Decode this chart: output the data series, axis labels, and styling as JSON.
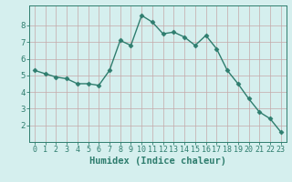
{
  "x": [
    0,
    1,
    2,
    3,
    4,
    5,
    6,
    7,
    8,
    9,
    10,
    11,
    12,
    13,
    14,
    15,
    16,
    17,
    18,
    19,
    20,
    21,
    22,
    23
  ],
  "y": [
    5.3,
    5.1,
    4.9,
    4.8,
    4.5,
    4.5,
    4.4,
    5.3,
    7.1,
    6.8,
    8.6,
    8.2,
    7.5,
    7.6,
    7.3,
    6.8,
    7.4,
    6.6,
    5.3,
    4.5,
    3.6,
    2.8,
    2.4,
    1.6
  ],
  "line_color": "#2e7d6e",
  "marker": "D",
  "markersize": 2.5,
  "linewidth": 1.0,
  "xlabel": "Humidex (Indice chaleur)",
  "xlabel_fontsize": 7.5,
  "xlim": [
    -0.5,
    23.5
  ],
  "ylim": [
    1.0,
    9.2
  ],
  "yticks": [
    2,
    3,
    4,
    5,
    6,
    7,
    8
  ],
  "xticks": [
    0,
    1,
    2,
    3,
    4,
    5,
    6,
    7,
    8,
    9,
    10,
    11,
    12,
    13,
    14,
    15,
    16,
    17,
    18,
    19,
    20,
    21,
    22,
    23
  ],
  "bg_color": "#d5efee",
  "grid_color": "#c4a8a8",
  "tick_color": "#2e7d6e",
  "tick_label_color": "#2e7d6e",
  "axis_label_color": "#2e7d6e",
  "tick_fontsize": 6.0,
  "ytick_fontsize": 6.5
}
